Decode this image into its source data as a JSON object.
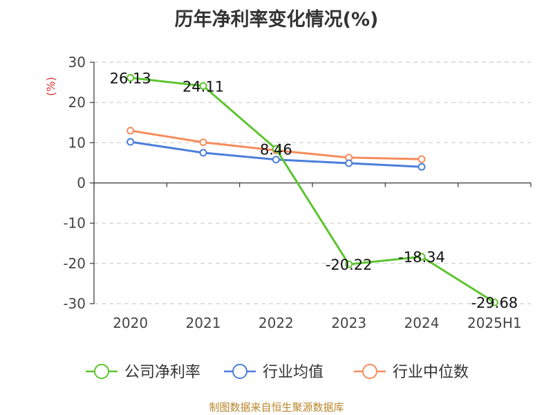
{
  "chart_data": {
    "type": "line",
    "title": "历年净利率变化情况(%)",
    "ylabel": "(%)",
    "xlabel": "",
    "categories": [
      "2020",
      "2021",
      "2022",
      "2023",
      "2024",
      "2025H1"
    ],
    "ylim": [
      -30,
      30
    ],
    "yticks": [
      30,
      20,
      10,
      0,
      -10,
      -20,
      -30
    ],
    "grid": "horizontal dashed",
    "legend_position": "bottom",
    "series": [
      {
        "name": "公司净利率",
        "color": "#5cc42e",
        "values": [
          26.13,
          24.11,
          8.46,
          -20.22,
          -18.34,
          -29.68
        ],
        "data_labels": [
          "26.13",
          "24.11",
          "8.46",
          "-20.22",
          "-18.34",
          "-29.68"
        ]
      },
      {
        "name": "行业均值",
        "color": "#4a7edb",
        "values": [
          10.2,
          7.5,
          5.8,
          4.9,
          4.0,
          null
        ]
      },
      {
        "name": "行业中位数",
        "color": "#f58c5c",
        "values": [
          13.0,
          10.1,
          8.1,
          6.3,
          5.9,
          null
        ]
      }
    ]
  },
  "footer": {
    "source": "制图数据来自恒生聚源数据库"
  }
}
